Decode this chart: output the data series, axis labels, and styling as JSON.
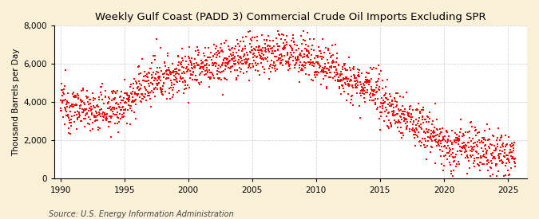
{
  "title": "Weekly Gulf Coast (PADD 3) Commercial Crude Oil Imports Excluding SPR",
  "ylabel": "Thousand Barrels per Day",
  "source": "Source: U.S. Energy Information Administration",
  "dot_color": "#FF0000",
  "background_color": "#FAF0D7",
  "plot_bg_color": "#FFFFFF",
  "grid_color": "#AAAAAA",
  "xlim": [
    1989.5,
    2026.5
  ],
  "ylim": [
    0,
    8000
  ],
  "yticks": [
    0,
    2000,
    4000,
    6000,
    8000
  ],
  "xticks": [
    1990,
    1995,
    2000,
    2005,
    2010,
    2015,
    2020,
    2025
  ],
  "marker_size": 3.5,
  "title_fontsize": 9.5,
  "label_fontsize": 7.5,
  "source_fontsize": 7.0,
  "tick_fontsize": 7.5
}
